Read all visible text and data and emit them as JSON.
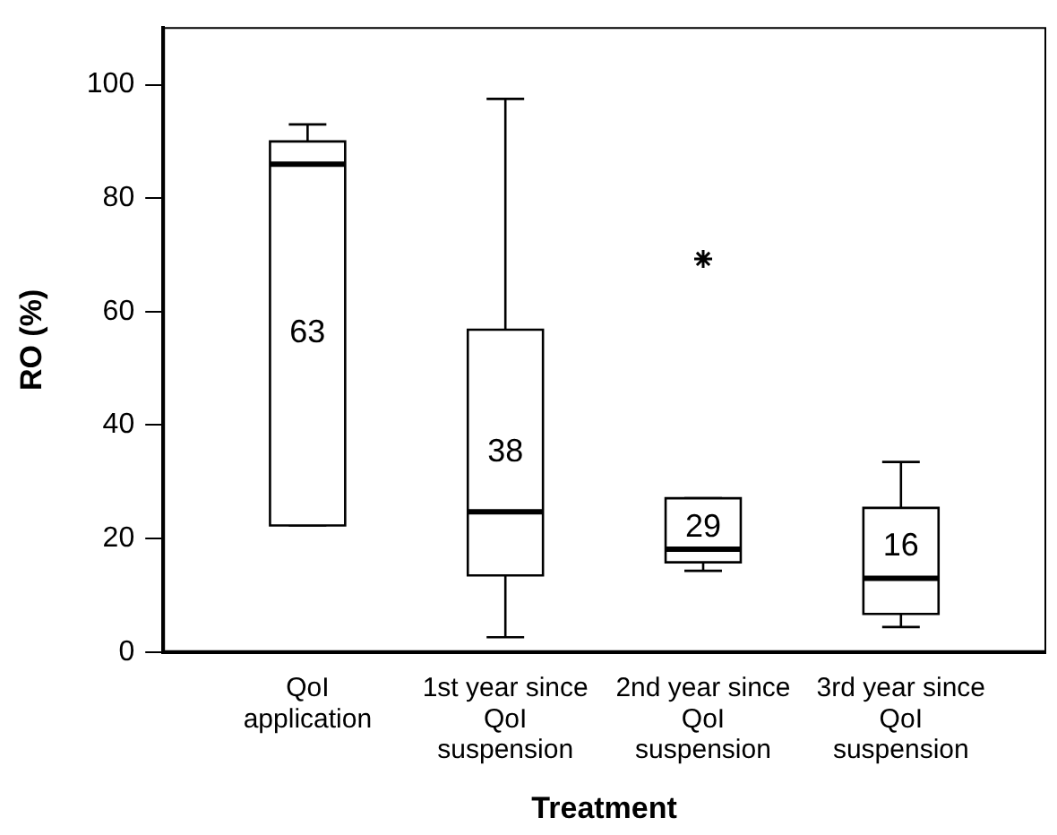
{
  "chart_data": {
    "type": "box",
    "xlabel": "Treatment",
    "ylabel": "RO (%)",
    "categories": [
      "QoI application",
      "1st year since QoI suspension",
      "2nd year since QoI suspension",
      "3rd year since QoI suspension"
    ],
    "boxes": [
      {
        "low": 22.3,
        "q1": 22.3,
        "median": 86,
        "q3": 90,
        "high": 93
      },
      {
        "low": 2.6,
        "q1": 13.5,
        "median": 24.7,
        "q3": 56.8,
        "high": 97.5
      },
      {
        "low": 14.3,
        "q1": 15.8,
        "median": 18.1,
        "q3": 27.1,
        "high": 27.1,
        "outliers": [
          69.3
        ]
      },
      {
        "low": 4.4,
        "q1": 6.7,
        "median": 13,
        "q3": 25.4,
        "high": 33.5
      }
    ],
    "annotations": [
      "63",
      "38",
      "29",
      "16"
    ],
    "ylim": [
      0,
      110
    ],
    "yticks": [
      0,
      20,
      40,
      60,
      80,
      100
    ],
    "grid": false,
    "legend": false,
    "marker": "star"
  }
}
